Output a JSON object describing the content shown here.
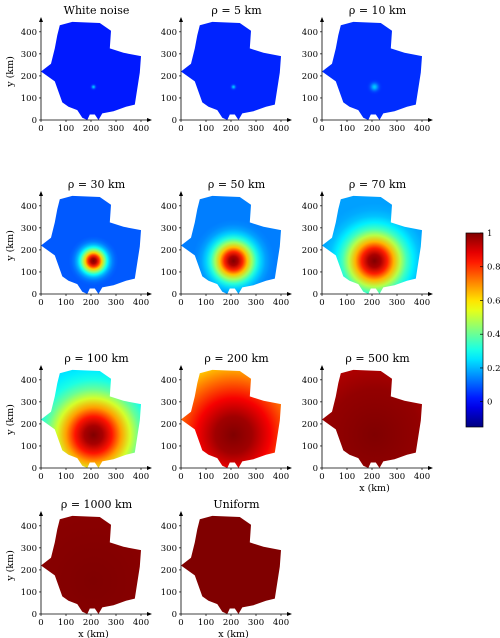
{
  "chart_data": [
    {
      "type": "heatmap",
      "title": "White noise",
      "ylabel": "y (km)",
      "xlabel": "",
      "xlim": [
        0,
        420
      ],
      "ylim": [
        0,
        440
      ],
      "xticks": [
        0,
        100,
        200,
        300,
        400
      ],
      "yticks": [
        0,
        100,
        200,
        300,
        400
      ],
      "correlation_length_km": 0
    },
    {
      "type": "heatmap",
      "title": "ρ = 5 km",
      "ylabel": "",
      "xlabel": "",
      "xlim": [
        0,
        420
      ],
      "ylim": [
        0,
        440
      ],
      "xticks": [
        0,
        100,
        200,
        300,
        400
      ],
      "yticks": [
        0,
        100,
        200,
        300,
        400
      ],
      "correlation_length_km": 5
    },
    {
      "type": "heatmap",
      "title": "ρ = 10 km",
      "ylabel": "",
      "xlabel": "",
      "xlim": [
        0,
        420
      ],
      "ylim": [
        0,
        440
      ],
      "xticks": [
        0,
        100,
        200,
        300,
        400
      ],
      "yticks": [
        0,
        100,
        200,
        300,
        400
      ],
      "correlation_length_km": 10
    },
    {
      "type": "heatmap",
      "title": "ρ = 30 km",
      "ylabel": "y (km)",
      "xlabel": "",
      "xlim": [
        0,
        420
      ],
      "ylim": [
        0,
        440
      ],
      "xticks": [
        0,
        100,
        200,
        300,
        400
      ],
      "yticks": [
        0,
        100,
        200,
        300,
        400
      ],
      "correlation_length_km": 30
    },
    {
      "type": "heatmap",
      "title": "ρ = 50 km",
      "ylabel": "",
      "xlabel": "",
      "xlim": [
        0,
        420
      ],
      "ylim": [
        0,
        440
      ],
      "xticks": [
        0,
        100,
        200,
        300,
        400
      ],
      "yticks": [
        0,
        100,
        200,
        300,
        400
      ],
      "correlation_length_km": 50
    },
    {
      "type": "heatmap",
      "title": "ρ = 70 km",
      "ylabel": "",
      "xlabel": "",
      "xlim": [
        0,
        420
      ],
      "ylim": [
        0,
        440
      ],
      "xticks": [
        0,
        100,
        200,
        300,
        400
      ],
      "yticks": [
        0,
        100,
        200,
        300,
        400
      ],
      "correlation_length_km": 70
    },
    {
      "type": "heatmap",
      "title": "ρ = 100 km",
      "ylabel": "y (km)",
      "xlabel": "",
      "xlim": [
        0,
        420
      ],
      "ylim": [
        0,
        440
      ],
      "xticks": [
        0,
        100,
        200,
        300,
        400
      ],
      "yticks": [
        0,
        100,
        200,
        300,
        400
      ],
      "correlation_length_km": 100
    },
    {
      "type": "heatmap",
      "title": "ρ = 200 km",
      "ylabel": "",
      "xlabel": "",
      "xlim": [
        0,
        420
      ],
      "ylim": [
        0,
        440
      ],
      "xticks": [
        0,
        100,
        200,
        300,
        400
      ],
      "yticks": [
        0,
        100,
        200,
        300,
        400
      ],
      "correlation_length_km": 200
    },
    {
      "type": "heatmap",
      "title": "ρ = 500 km",
      "ylabel": "",
      "xlabel": "x (km)",
      "xlim": [
        0,
        420
      ],
      "ylim": [
        0,
        440
      ],
      "xticks": [
        0,
        100,
        200,
        300,
        400
      ],
      "yticks": [
        0,
        100,
        200,
        300,
        400
      ],
      "correlation_length_km": 500
    },
    {
      "type": "heatmap",
      "title": "ρ = 1000 km",
      "ylabel": "y (km)",
      "xlabel": "x (km)",
      "xlim": [
        0,
        420
      ],
      "ylim": [
        0,
        440
      ],
      "xticks": [
        0,
        100,
        200,
        300,
        400
      ],
      "yticks": [
        0,
        100,
        200,
        300,
        400
      ],
      "correlation_length_km": 1000
    },
    {
      "type": "heatmap",
      "title": "Uniform",
      "ylabel": "",
      "xlabel": "x (km)",
      "xlim": [
        0,
        420
      ],
      "ylim": [
        0,
        440
      ],
      "xticks": [
        0,
        100,
        200,
        300,
        400
      ],
      "yticks": [
        0,
        100,
        200,
        300,
        400
      ],
      "correlation_length_km": null
    }
  ],
  "peak_location_km": [
    210,
    150
  ],
  "region_outline_km": [
    [
      75,
      430
    ],
    [
      125,
      445
    ],
    [
      235,
      440
    ],
    [
      280,
      405
    ],
    [
      275,
      325
    ],
    [
      330,
      305
    ],
    [
      400,
      290
    ],
    [
      395,
      215
    ],
    [
      375,
      70
    ],
    [
      340,
      60
    ],
    [
      290,
      40
    ],
    [
      245,
      30
    ],
    [
      230,
      0
    ],
    [
      215,
      25
    ],
    [
      195,
      25
    ],
    [
      185,
      0
    ],
    [
      165,
      10
    ],
    [
      145,
      45
    ],
    [
      110,
      60
    ],
    [
      85,
      80
    ],
    [
      55,
      175
    ],
    [
      0,
      220
    ],
    [
      40,
      255
    ],
    [
      55,
      325
    ],
    [
      65,
      385
    ]
  ],
  "colorbar": {
    "min": -0.15,
    "max": 1.0,
    "ticks": [
      0,
      0.2,
      0.4,
      0.6,
      0.8,
      1
    ],
    "tick_labels": [
      "0",
      "0.2",
      "0.4",
      "0.6",
      "0.8",
      "1"
    ]
  }
}
